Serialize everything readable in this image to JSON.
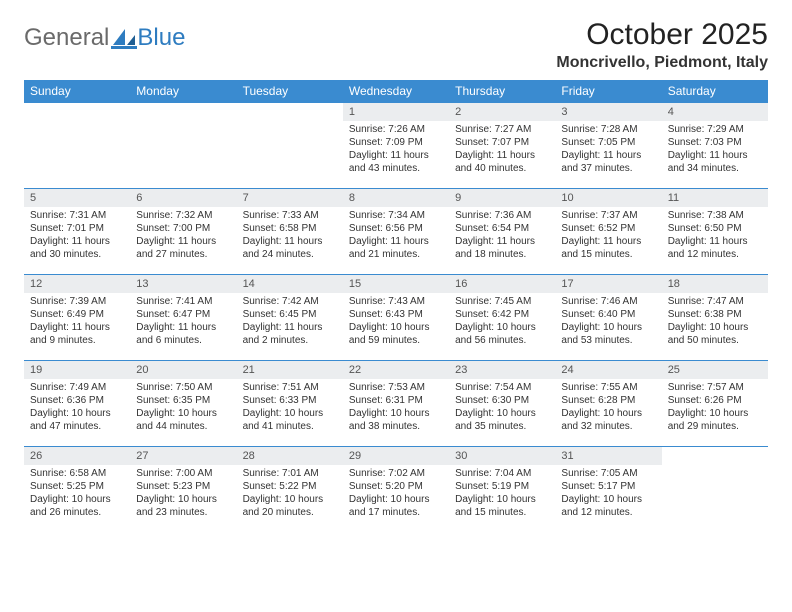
{
  "brand": {
    "word1": "General",
    "word2": "Blue"
  },
  "title": "October 2025",
  "location": "Moncrivello, Piedmont, Italy",
  "colors": {
    "header_bg": "#3a8bd0",
    "header_fg": "#ffffff",
    "daynum_bg": "#ebedef",
    "rule": "#3a8bd0",
    "logo_gray": "#6a6a6a",
    "logo_blue": "#2e7cc0"
  },
  "dow": [
    "Sunday",
    "Monday",
    "Tuesday",
    "Wednesday",
    "Thursday",
    "Friday",
    "Saturday"
  ],
  "weeks": [
    [
      null,
      null,
      null,
      {
        "n": "1",
        "sr": "7:26 AM",
        "ss": "7:09 PM",
        "dl": "11 hours and 43 minutes."
      },
      {
        "n": "2",
        "sr": "7:27 AM",
        "ss": "7:07 PM",
        "dl": "11 hours and 40 minutes."
      },
      {
        "n": "3",
        "sr": "7:28 AM",
        "ss": "7:05 PM",
        "dl": "11 hours and 37 minutes."
      },
      {
        "n": "4",
        "sr": "7:29 AM",
        "ss": "7:03 PM",
        "dl": "11 hours and 34 minutes."
      }
    ],
    [
      {
        "n": "5",
        "sr": "7:31 AM",
        "ss": "7:01 PM",
        "dl": "11 hours and 30 minutes."
      },
      {
        "n": "6",
        "sr": "7:32 AM",
        "ss": "7:00 PM",
        "dl": "11 hours and 27 minutes."
      },
      {
        "n": "7",
        "sr": "7:33 AM",
        "ss": "6:58 PM",
        "dl": "11 hours and 24 minutes."
      },
      {
        "n": "8",
        "sr": "7:34 AM",
        "ss": "6:56 PM",
        "dl": "11 hours and 21 minutes."
      },
      {
        "n": "9",
        "sr": "7:36 AM",
        "ss": "6:54 PM",
        "dl": "11 hours and 18 minutes."
      },
      {
        "n": "10",
        "sr": "7:37 AM",
        "ss": "6:52 PM",
        "dl": "11 hours and 15 minutes."
      },
      {
        "n": "11",
        "sr": "7:38 AM",
        "ss": "6:50 PM",
        "dl": "11 hours and 12 minutes."
      }
    ],
    [
      {
        "n": "12",
        "sr": "7:39 AM",
        "ss": "6:49 PM",
        "dl": "11 hours and 9 minutes."
      },
      {
        "n": "13",
        "sr": "7:41 AM",
        "ss": "6:47 PM",
        "dl": "11 hours and 6 minutes."
      },
      {
        "n": "14",
        "sr": "7:42 AM",
        "ss": "6:45 PM",
        "dl": "11 hours and 2 minutes."
      },
      {
        "n": "15",
        "sr": "7:43 AM",
        "ss": "6:43 PM",
        "dl": "10 hours and 59 minutes."
      },
      {
        "n": "16",
        "sr": "7:45 AM",
        "ss": "6:42 PM",
        "dl": "10 hours and 56 minutes."
      },
      {
        "n": "17",
        "sr": "7:46 AM",
        "ss": "6:40 PM",
        "dl": "10 hours and 53 minutes."
      },
      {
        "n": "18",
        "sr": "7:47 AM",
        "ss": "6:38 PM",
        "dl": "10 hours and 50 minutes."
      }
    ],
    [
      {
        "n": "19",
        "sr": "7:49 AM",
        "ss": "6:36 PM",
        "dl": "10 hours and 47 minutes."
      },
      {
        "n": "20",
        "sr": "7:50 AM",
        "ss": "6:35 PM",
        "dl": "10 hours and 44 minutes."
      },
      {
        "n": "21",
        "sr": "7:51 AM",
        "ss": "6:33 PM",
        "dl": "10 hours and 41 minutes."
      },
      {
        "n": "22",
        "sr": "7:53 AM",
        "ss": "6:31 PM",
        "dl": "10 hours and 38 minutes."
      },
      {
        "n": "23",
        "sr": "7:54 AM",
        "ss": "6:30 PM",
        "dl": "10 hours and 35 minutes."
      },
      {
        "n": "24",
        "sr": "7:55 AM",
        "ss": "6:28 PM",
        "dl": "10 hours and 32 minutes."
      },
      {
        "n": "25",
        "sr": "7:57 AM",
        "ss": "6:26 PM",
        "dl": "10 hours and 29 minutes."
      }
    ],
    [
      {
        "n": "26",
        "sr": "6:58 AM",
        "ss": "5:25 PM",
        "dl": "10 hours and 26 minutes."
      },
      {
        "n": "27",
        "sr": "7:00 AM",
        "ss": "5:23 PM",
        "dl": "10 hours and 23 minutes."
      },
      {
        "n": "28",
        "sr": "7:01 AM",
        "ss": "5:22 PM",
        "dl": "10 hours and 20 minutes."
      },
      {
        "n": "29",
        "sr": "7:02 AM",
        "ss": "5:20 PM",
        "dl": "10 hours and 17 minutes."
      },
      {
        "n": "30",
        "sr": "7:04 AM",
        "ss": "5:19 PM",
        "dl": "10 hours and 15 minutes."
      },
      {
        "n": "31",
        "sr": "7:05 AM",
        "ss": "5:17 PM",
        "dl": "10 hours and 12 minutes."
      },
      null
    ]
  ],
  "labels": {
    "sunrise": "Sunrise:",
    "sunset": "Sunset:",
    "daylight": "Daylight:"
  }
}
